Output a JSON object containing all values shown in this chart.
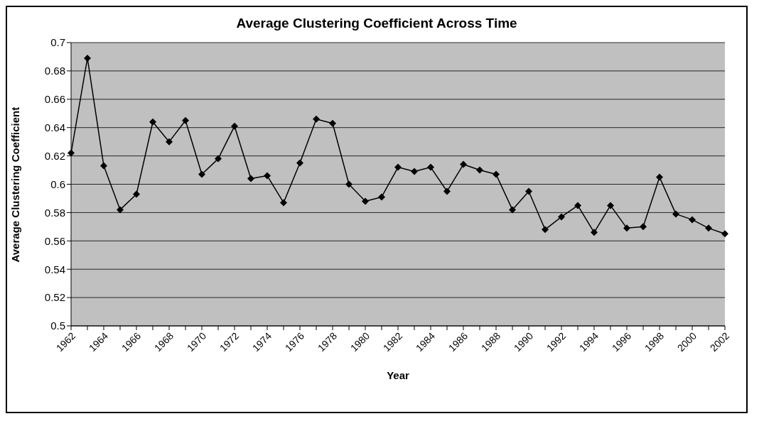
{
  "chart_data": {
    "type": "line",
    "title": "Average Clustering Coefficient Across Time",
    "xlabel": "Year",
    "ylabel": "Average Clustering Coefficient",
    "categories": [
      "1962",
      null,
      "1964",
      null,
      "1966",
      null,
      "1968",
      null,
      "1970",
      null,
      "1972",
      null,
      "1974",
      null,
      "1976",
      null,
      "1978",
      null,
      "1980",
      null,
      "1982",
      null,
      "1984",
      null,
      "1986",
      null,
      "1988",
      null,
      "1990",
      null,
      "1992",
      null,
      "1994",
      null,
      "1996",
      null,
      "1998",
      null,
      "2000",
      null,
      "2002"
    ],
    "series": [
      {
        "color": "#000000",
        "values": [
          0.622,
          0.689,
          0.613,
          0.582,
          0.593,
          0.644,
          0.63,
          0.645,
          0.607,
          0.618,
          0.641,
          0.604,
          0.606,
          0.587,
          0.615,
          0.646,
          0.643,
          0.6,
          0.588,
          0.591,
          0.612,
          0.609,
          0.612,
          0.595,
          0.614,
          0.61,
          0.607,
          0.582,
          0.595,
          0.568,
          0.577,
          0.585,
          0.566,
          0.585,
          0.569,
          0.57,
          0.605,
          0.579,
          0.575,
          0.569,
          0.565
        ]
      }
    ],
    "ylim": [
      0.5,
      0.7
    ],
    "yticks": [
      0.5,
      0.52,
      0.54,
      0.56,
      0.58,
      0.6,
      0.62,
      0.64,
      0.66,
      0.68,
      0.7
    ],
    "grid": "y",
    "marker": "diamond",
    "line_style": "solid",
    "legend": false
  }
}
